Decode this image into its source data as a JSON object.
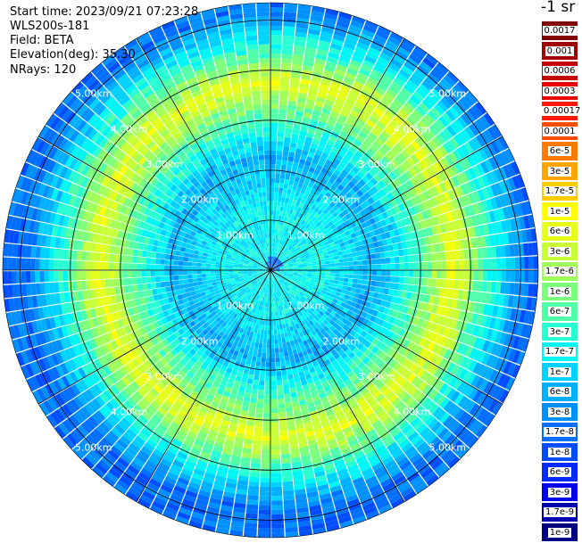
{
  "header": {
    "start_time": "Start time: 2023/09/21 07:23:28",
    "device": "WLS200s-181",
    "field": "Field: BETA",
    "elevation": "Elevation(deg): 35.30",
    "nrays": "NRays: 120"
  },
  "legend": {
    "unit": "-1 sr",
    "entries": [
      {
        "label": "0.0017",
        "color": "#800000"
      },
      {
        "label": "0.001",
        "color": "#a00000"
      },
      {
        "label": "0.0006",
        "color": "#c40000"
      },
      {
        "label": "0.0003",
        "color": "#e60000"
      },
      {
        "label": "0.00017",
        "color": "#ff1a00"
      },
      {
        "label": "0.0001",
        "color": "#ff4d00"
      },
      {
        "label": "6e-5",
        "color": "#ff7a00"
      },
      {
        "label": "3e-5",
        "color": "#ffa500"
      },
      {
        "label": "1.7e-5",
        "color": "#ffcc00"
      },
      {
        "label": "1e-5",
        "color": "#ffff00"
      },
      {
        "label": "6e-6",
        "color": "#e6ff1a"
      },
      {
        "label": "3e-6",
        "color": "#c8ff37"
      },
      {
        "label": "1.7e-6",
        "color": "#a0ff5a"
      },
      {
        "label": "1e-6",
        "color": "#7cff7c"
      },
      {
        "label": "6e-7",
        "color": "#50ffa8"
      },
      {
        "label": "3e-7",
        "color": "#28ffd2"
      },
      {
        "label": "1.7e-7",
        "color": "#00f5f5"
      },
      {
        "label": "1e-7",
        "color": "#00d2ff"
      },
      {
        "label": "6e-8",
        "color": "#00b0ff"
      },
      {
        "label": "3e-8",
        "color": "#0090ff"
      },
      {
        "label": "1.7e-8",
        "color": "#006eff"
      },
      {
        "label": "1e-8",
        "color": "#004cff"
      },
      {
        "label": "6e-9",
        "color": "#0028ff"
      },
      {
        "label": "3e-9",
        "color": "#0000ee"
      },
      {
        "label": "1.7e-9",
        "color": "#0000b0"
      },
      {
        "label": "1e-9",
        "color": "#000080"
      }
    ]
  },
  "chart_data": {
    "type": "heatmap",
    "projection": "polar",
    "rays": 120,
    "range_rings_km": [
      1,
      2,
      3,
      4,
      5
    ],
    "ring_label_suffix": "km",
    "spokes": 12,
    "radial_profile_by_distance_km": [
      {
        "range_km": 0.0,
        "level": "1.7e-7"
      },
      {
        "range_km": 1.0,
        "level": "1.7e-7"
      },
      {
        "range_km": 2.0,
        "level": "6e-8"
      },
      {
        "range_km": 3.0,
        "level": "1e-6"
      },
      {
        "range_km": 3.5,
        "level": "6e-6"
      },
      {
        "range_km": 4.2,
        "level": "3e-7"
      },
      {
        "range_km": 5.0,
        "level": "1.7e-8"
      }
    ]
  }
}
